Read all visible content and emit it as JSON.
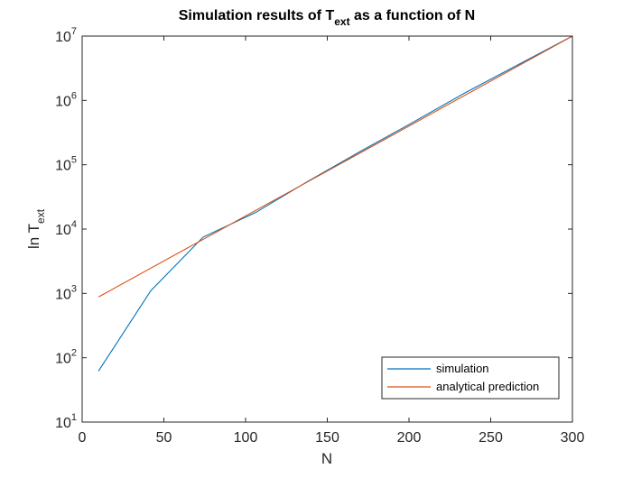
{
  "chart_data": {
    "type": "line",
    "title": {
      "prefix": "Simulation results of T",
      "sub": "ext",
      "suffix": " as a function of N"
    },
    "xlabel": "N",
    "ylabel": {
      "base": "ln T",
      "sub": "ext"
    },
    "xlim": [
      0,
      300
    ],
    "ylim": [
      10,
      10000000
    ],
    "yscale": "log",
    "xticks": [
      0,
      50,
      100,
      150,
      200,
      250,
      300
    ],
    "xtick_labels": [
      "0",
      "50",
      "100",
      "150",
      "200",
      "250",
      "300"
    ],
    "yticks": [
      10,
      100,
      1000,
      10000,
      100000,
      1000000,
      10000000
    ],
    "ytick_labels": [
      {
        "base": "10",
        "exp": "1"
      },
      {
        "base": "10",
        "exp": "2"
      },
      {
        "base": "10",
        "exp": "3"
      },
      {
        "base": "10",
        "exp": "4"
      },
      {
        "base": "10",
        "exp": "5"
      },
      {
        "base": "10",
        "exp": "6"
      },
      {
        "base": "10",
        "exp": "7"
      }
    ],
    "grid": false,
    "legend_position": "bottom-right",
    "series": [
      {
        "name": "simulation",
        "color": "#0072BD",
        "x": [
          10,
          42,
          74,
          106,
          138,
          170,
          202,
          234,
          266,
          300
        ],
        "y": [
          62,
          1100,
          7500,
          18000,
          55000,
          160000,
          450000,
          1300000,
          3500000,
          10000000
        ]
      },
      {
        "name": "analytical prediction",
        "color": "#D95319",
        "x": [
          10,
          300
        ],
        "y": [
          880,
          10000000
        ]
      }
    ]
  }
}
